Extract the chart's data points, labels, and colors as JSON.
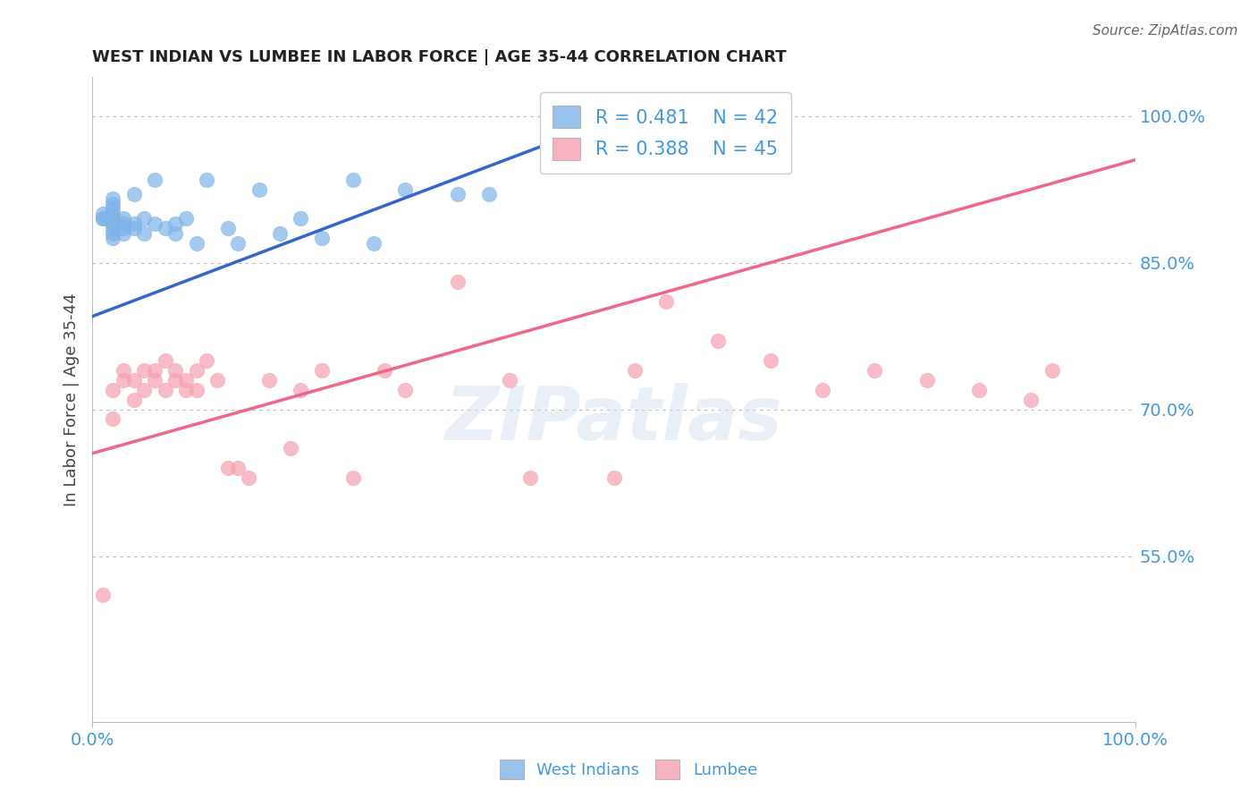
{
  "title": "WEST INDIAN VS LUMBEE IN LABOR FORCE | AGE 35-44 CORRELATION CHART",
  "source": "Source: ZipAtlas.com",
  "ylabel": "In Labor Force | Age 35-44",
  "r_west_indian": 0.481,
  "n_west_indian": 42,
  "r_lumbee": 0.388,
  "n_lumbee": 45,
  "west_indian_color": "#7EB3E8",
  "lumbee_color": "#F5A0B0",
  "trend_blue": "#3366CC",
  "trend_pink": "#EE6688",
  "bg_color": "#FFFFFF",
  "grid_color": "#BBBBBB",
  "axis_label_color": "#4499DD",
  "title_color": "#222222",
  "watermark": "ZIPatlas",
  "xlim": [
    0.0,
    1.0
  ],
  "ylim": [
    0.38,
    1.04
  ],
  "west_indian_x": [
    0.01,
    0.01,
    0.01,
    0.02,
    0.02,
    0.02,
    0.02,
    0.02,
    0.02,
    0.02,
    0.02,
    0.02,
    0.03,
    0.03,
    0.03,
    0.03,
    0.04,
    0.04,
    0.04,
    0.05,
    0.05,
    0.06,
    0.06,
    0.07,
    0.08,
    0.08,
    0.09,
    0.1,
    0.11,
    0.13,
    0.14,
    0.16,
    0.18,
    0.2,
    0.22,
    0.25,
    0.27,
    0.3,
    0.35,
    0.38,
    0.5,
    0.52
  ],
  "west_indian_y": [
    0.895,
    0.895,
    0.9,
    0.875,
    0.88,
    0.885,
    0.89,
    0.895,
    0.9,
    0.905,
    0.91,
    0.915,
    0.88,
    0.885,
    0.89,
    0.895,
    0.885,
    0.89,
    0.92,
    0.88,
    0.895,
    0.89,
    0.935,
    0.885,
    0.88,
    0.89,
    0.895,
    0.87,
    0.935,
    0.885,
    0.87,
    0.925,
    0.88,
    0.895,
    0.875,
    0.935,
    0.87,
    0.925,
    0.92,
    0.92,
    1.0,
    1.0
  ],
  "lumbee_x": [
    0.01,
    0.02,
    0.02,
    0.03,
    0.03,
    0.04,
    0.04,
    0.05,
    0.05,
    0.06,
    0.06,
    0.07,
    0.07,
    0.08,
    0.08,
    0.09,
    0.09,
    0.1,
    0.1,
    0.11,
    0.12,
    0.13,
    0.14,
    0.15,
    0.17,
    0.19,
    0.2,
    0.22,
    0.25,
    0.28,
    0.3,
    0.35,
    0.4,
    0.42,
    0.5,
    0.52,
    0.55,
    0.6,
    0.65,
    0.7,
    0.75,
    0.8,
    0.85,
    0.9,
    0.92
  ],
  "lumbee_y": [
    0.51,
    0.69,
    0.72,
    0.73,
    0.74,
    0.71,
    0.73,
    0.72,
    0.74,
    0.73,
    0.74,
    0.72,
    0.75,
    0.73,
    0.74,
    0.72,
    0.73,
    0.74,
    0.72,
    0.75,
    0.73,
    0.64,
    0.64,
    0.63,
    0.73,
    0.66,
    0.72,
    0.74,
    0.63,
    0.74,
    0.72,
    0.83,
    0.73,
    0.63,
    0.63,
    0.74,
    0.81,
    0.77,
    0.75,
    0.72,
    0.74,
    0.73,
    0.72,
    0.71,
    0.74
  ],
  "yticks": [
    0.55,
    0.7,
    0.85,
    1.0
  ],
  "ytick_labels": [
    "55.0%",
    "70.0%",
    "85.0%",
    "100.0%"
  ],
  "xtick_labels": [
    "0.0%",
    "100.0%"
  ],
  "blue_trend_x": [
    0.0,
    0.52
  ],
  "blue_trend_y": [
    0.795,
    1.005
  ],
  "pink_trend_x": [
    0.0,
    1.0
  ],
  "pink_trend_y": [
    0.655,
    0.955
  ]
}
